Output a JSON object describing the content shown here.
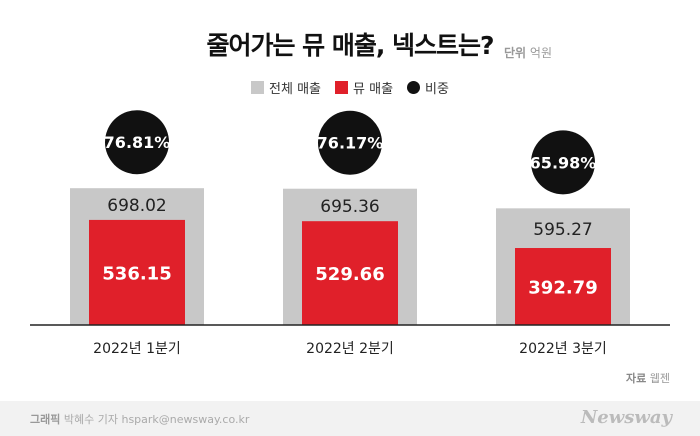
{
  "title": "줄어가는 뮤 매출, 넥스트는?",
  "unit_label": "단위",
  "unit_value": "억원",
  "legend": [
    {
      "label": "전체 매출",
      "color": "#c8c8c8",
      "shape": "square"
    },
    {
      "label": "뮤 매출",
      "color": "#e0202a",
      "shape": "square"
    },
    {
      "label": "비중",
      "color": "#111111",
      "shape": "circle"
    }
  ],
  "source_label": "자료",
  "source_value": "웹젠",
  "credit_label": "그래픽",
  "credit_value": "박혜수 기자 hspark@newsway.co.kr",
  "logo": "Newsway",
  "chart_data": {
    "type": "bar",
    "categories": [
      "2022년 1분기",
      "2022년 2분기",
      "2022년 3분기"
    ],
    "series": [
      {
        "name": "전체 매출",
        "values": [
          698.02,
          695.36,
          595.27
        ],
        "color": "#c8c8c8"
      },
      {
        "name": "뮤 매출",
        "values": [
          536.15,
          529.66,
          392.79
        ],
        "color": "#e0202a"
      }
    ],
    "share": {
      "name": "비중",
      "labels": [
        "76.81%",
        "76.17%",
        "65.98%"
      ]
    },
    "title": "줄어가는 뮤 매출, 넥스트는?",
    "xlabel": "",
    "ylabel": "",
    "ylim": [
      0,
      1000
    ],
    "grid": false,
    "legend_position": "top-center"
  }
}
